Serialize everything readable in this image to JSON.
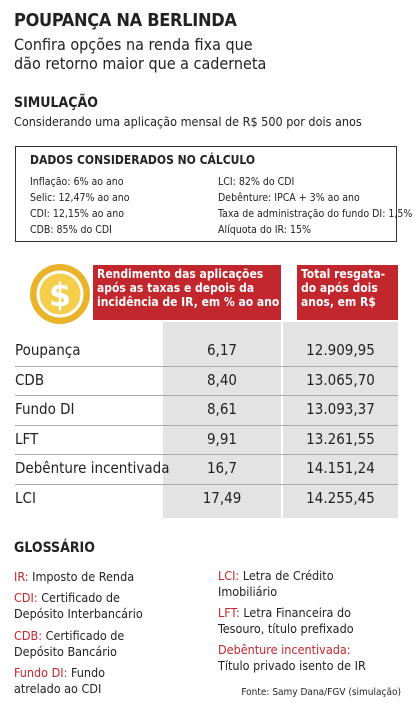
{
  "header": {
    "title": "POUPANÇA NA BERLINDA",
    "subtitle": [
      "Confira opções na renda fixa que",
      "dão retorno maior que a caderneta"
    ]
  },
  "simulation": {
    "title": "SIMULAÇÃO",
    "text": "Considerando uma aplicação mensal de R$ 500 por dois anos"
  },
  "assumptions": {
    "title": "DADOS CONSIDERADOS NO CÁLCULO",
    "items": [
      "Inflação: 6% ao ano",
      "Selic: 12,47% ao ano",
      "CDI: 12,15% ao ano",
      "CDB: 85% do CDI",
      "LCI: 82% do CDI",
      "Debênture: IPCA + 3% ao ano",
      "Taxa de administração do fundo DI: 1,5%",
      "Alíquota do IR: 15%"
    ]
  },
  "table": {
    "column_headers": [
      [
        "Rendimento das aplicações",
        "após as taxas e depois da",
        "incidência de IR, em % ao ano"
      ],
      [
        "Total resgata-",
        "do após dois",
        "anos, em R$"
      ]
    ],
    "rows": [
      [
        "Poupança",
        "6,17",
        "12.909,95"
      ],
      [
        "CDB",
        "8,40",
        "13.065,70"
      ],
      [
        "Fundo DI",
        "8,61",
        "13.093,37"
      ],
      [
        "LFT",
        "9,91",
        "13.261,55"
      ],
      [
        "Debênture incentivada",
        "16,7",
        "14.151,24"
      ],
      [
        "LCI",
        "17,49",
        "14.255,45"
      ]
    ]
  },
  "glossary": {
    "title": "GLOSSÁRIO",
    "left": [
      {
        "term": "IR:",
        "definition": [
          "Imposto de Renda"
        ]
      },
      {
        "term": "CDI:",
        "definition": [
          "Certificado de",
          "Depósito Interbancário"
        ]
      },
      {
        "term": "CDB:",
        "definition": [
          "Certificado de",
          "Depósito Bancário"
        ]
      },
      {
        "term": "Fundo DI:",
        "definition": [
          "Fundo",
          "atrelado ao CDI"
        ]
      }
    ],
    "right": [
      {
        "term": "LCI:",
        "definition": [
          "Letra de Crédito",
          "Imobiliário"
        ]
      },
      {
        "term": "LFT:",
        "definition": [
          "Letra Financeira do",
          "Tesouro, título prefixado"
        ]
      },
      {
        "term": "Debênture incentivada:",
        "definition": [
          "Título privado isento de IR"
        ]
      }
    ]
  },
  "source": "Fonte: Samy Dana/FGV (simulação)"
}
